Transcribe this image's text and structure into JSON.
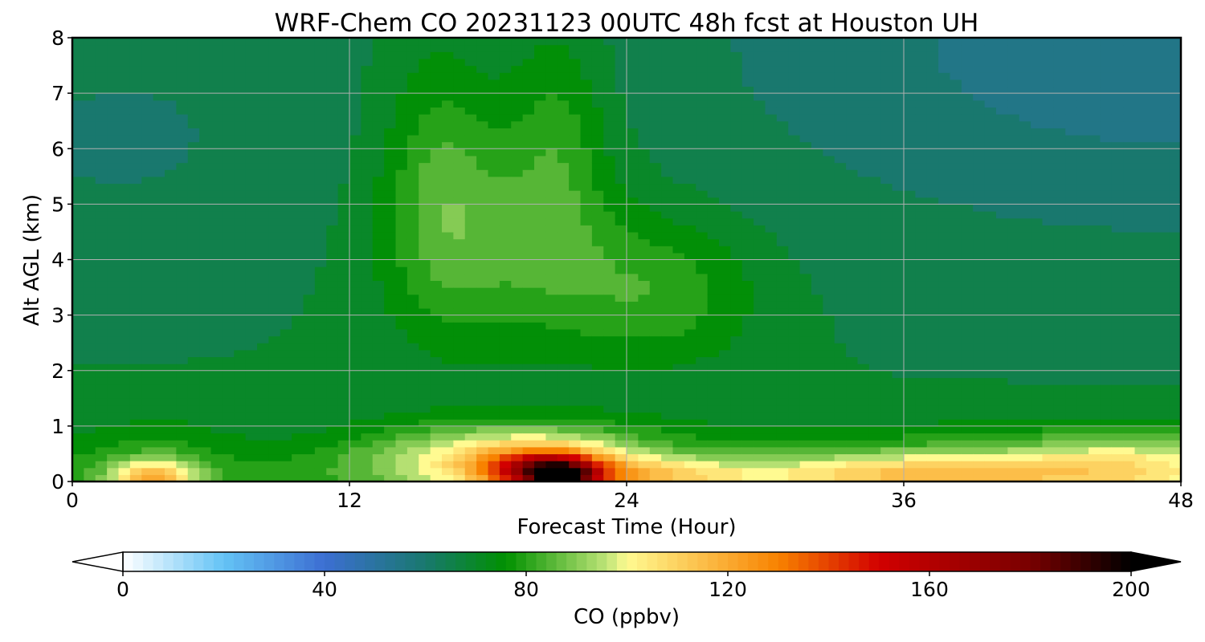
{
  "chart_data": {
    "type": "heatmap",
    "title": "WRF-Chem CO  20231123 00UTC 48h fcst at Houston UH",
    "xlabel": "Forecast Time (Hour)",
    "ylabel": "Alt AGL (km)",
    "xlim": [
      0,
      48
    ],
    "ylim": [
      0,
      8
    ],
    "x_ticks": [
      "0",
      "12",
      "24",
      "36",
      "48"
    ],
    "y_ticks": [
      "0",
      "1",
      "2",
      "3",
      "4",
      "5",
      "6",
      "7",
      "8"
    ],
    "grid": true,
    "z": {
      "label": "CO  (ppbv)",
      "range": [
        0,
        200
      ],
      "ticks": [
        "0",
        "40",
        "80",
        "120",
        "160",
        "200"
      ],
      "extend": "both",
      "background": 68
    },
    "features": [
      {
        "x": 48,
        "y": 8.0,
        "rx": 20,
        "ry": 3.6,
        "value": -14
      },
      {
        "x": 2,
        "y": 6.2,
        "rx": 10,
        "ry": 2.6,
        "value": -6
      },
      {
        "x": 40,
        "y": 0.3,
        "rx": 13,
        "ry": 0.7,
        "value": 12
      },
      {
        "x": 16,
        "y": 5.5,
        "rx": 2.6,
        "ry": 2.4,
        "value": 14
      },
      {
        "x": 21,
        "y": 6.2,
        "rx": 2.2,
        "ry": 2.2,
        "value": 12
      },
      {
        "x": 19,
        "y": 4.2,
        "rx": 5,
        "ry": 1.8,
        "value": 12
      },
      {
        "x": 25.5,
        "y": 3.4,
        "rx": 4.2,
        "ry": 1.3,
        "value": 13
      },
      {
        "x": 19,
        "y": 0.45,
        "rx": 6,
        "ry": 0.6,
        "value": 34
      },
      {
        "x": 20.5,
        "y": 0.2,
        "rx": 2.5,
        "ry": 0.35,
        "value": 70
      },
      {
        "x": 21.2,
        "y": 0.05,
        "rx": 1.2,
        "ry": 0.25,
        "value": 60
      },
      {
        "x": 24.5,
        "y": 0.1,
        "rx": 5,
        "ry": 0.3,
        "value": 25
      },
      {
        "x": 37,
        "y": 0.12,
        "rx": 7,
        "ry": 0.35,
        "value": 28
      },
      {
        "x": 3.5,
        "y": 0.05,
        "rx": 1.8,
        "ry": 0.3,
        "value": 38
      },
      {
        "x": 3.5,
        "y": 0.5,
        "rx": 3,
        "ry": 0.7,
        "value": 8
      },
      {
        "x": 46,
        "y": 0.3,
        "rx": 5,
        "ry": 0.6,
        "value": 18
      }
    ]
  }
}
